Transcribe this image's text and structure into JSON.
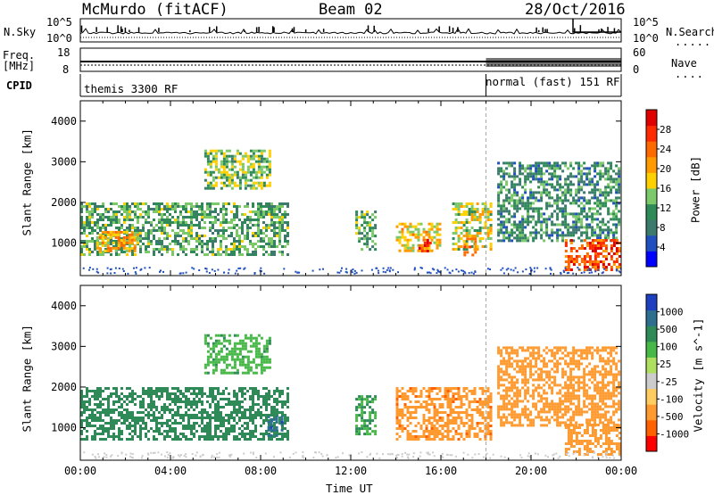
{
  "header": {
    "station": "McMurdo (fitACF)",
    "beam": "Beam 02",
    "date": "28/Oct/2016"
  },
  "status_panel": {
    "left_labels": {
      "nsky": "N.Sky",
      "freq": "Freq.",
      "mhz": "[MHz]",
      "cpid": "CPID"
    },
    "right_labels": {
      "nsearch": "N.Search",
      "nave": "Nave"
    },
    "left_ticks": {
      "top_hi": "10^5",
      "top_lo": "10^0",
      "freq_hi": "18",
      "freq_lo": "8"
    },
    "right_ticks": {
      "top_hi": "10^5",
      "top_lo": "10^0",
      "nave_hi": "60",
      "nave_lo": "0"
    },
    "cpid_segments": [
      {
        "label": "themis 3300 RF",
        "start_hour": 0
      },
      {
        "label": "normal (fast) 151 RF",
        "start_hour": 18
      }
    ]
  },
  "colors": {
    "power_scale": [
      "#0000ff",
      "#2050c0",
      "#3d7a6e",
      "#2e8b57",
      "#7cc96a",
      "#ffd000",
      "#ff9a00",
      "#ff6a00",
      "#ff2a00",
      "#e00000"
    ],
    "velocity_scale": [
      "#ff0000",
      "#ff6000",
      "#ff9a30",
      "#ffcc60",
      "#cccccc",
      "#aee060",
      "#48b848",
      "#2e8b57",
      "#2e6f8f",
      "#1e40c0"
    ]
  },
  "chart_data": [
    {
      "type": "heatmap",
      "quantity": "Power",
      "ylabel": "Slant Range [km]",
      "ylim": [
        200,
        4500
      ],
      "yticks": [
        "1000",
        "2000",
        "3000",
        "4000"
      ],
      "xlim": [
        0,
        24
      ],
      "colorbar": {
        "title": "Power [dB]",
        "ticks": [
          "4",
          "8",
          "12",
          "16",
          "20",
          "24",
          "28"
        ],
        "range": [
          0,
          32
        ]
      },
      "patches": [
        {
          "t0": 0.0,
          "t1": 9.3,
          "r0": 700,
          "r1": 2000,
          "value": 12
        },
        {
          "t0": 0.7,
          "t1": 2.6,
          "r0": 800,
          "r1": 1300,
          "value": 20
        },
        {
          "t0": 5.5,
          "t1": 8.5,
          "r0": 2300,
          "r1": 3300,
          "value": 14
        },
        {
          "t0": 12.2,
          "t1": 13.1,
          "r0": 800,
          "r1": 1800,
          "value": 12
        },
        {
          "t0": 14.0,
          "t1": 16.0,
          "r0": 800,
          "r1": 1500,
          "value": 18
        },
        {
          "t0": 15.0,
          "t1": 15.6,
          "r0": 800,
          "r1": 1100,
          "value": 26
        },
        {
          "t0": 16.5,
          "t1": 18.3,
          "r0": 800,
          "r1": 2000,
          "value": 16
        },
        {
          "t0": 17.0,
          "t1": 17.6,
          "r0": 700,
          "r1": 1200,
          "value": 24
        },
        {
          "t0": 18.5,
          "t1": 24.0,
          "r0": 1000,
          "r1": 3000,
          "value": 10
        },
        {
          "t0": 21.5,
          "t1": 24.0,
          "r0": 300,
          "r1": 1100,
          "value": 26
        }
      ]
    },
    {
      "type": "heatmap",
      "quantity": "Velocity",
      "ylabel": "Slant Range [km]",
      "xlabel": "Time UT",
      "ylim": [
        200,
        4500
      ],
      "yticks": [
        "1000",
        "2000",
        "3000",
        "4000"
      ],
      "xlim": [
        0,
        24
      ],
      "xticks": [
        "00:00",
        "04:00",
        "08:00",
        "12:00",
        "16:00",
        "20:00",
        "00:00"
      ],
      "colorbar": {
        "title": "Velocity [m s^-1]",
        "ticks": [
          "-1000",
          "-500",
          "-100",
          "-25",
          "25",
          "100",
          "500",
          "1000"
        ]
      },
      "patches": [
        {
          "t0": 0.0,
          "t1": 9.3,
          "r0": 700,
          "r1": 2000,
          "value": 150
        },
        {
          "t0": 8.3,
          "t1": 9.0,
          "r0": 800,
          "r1": 1300,
          "value": 800
        },
        {
          "t0": 5.5,
          "t1": 8.5,
          "r0": 2300,
          "r1": 3300,
          "value": 80
        },
        {
          "t0": 12.2,
          "t1": 13.1,
          "r0": 800,
          "r1": 1800,
          "value": 100
        },
        {
          "t0": 14.0,
          "t1": 18.3,
          "r0": 700,
          "r1": 2000,
          "value": -400
        },
        {
          "t0": 18.5,
          "t1": 24.0,
          "r0": 1000,
          "r1": 3000,
          "value": -300
        },
        {
          "t0": 21.5,
          "t1": 24.0,
          "r0": 300,
          "r1": 1100,
          "value": -200
        }
      ]
    }
  ]
}
